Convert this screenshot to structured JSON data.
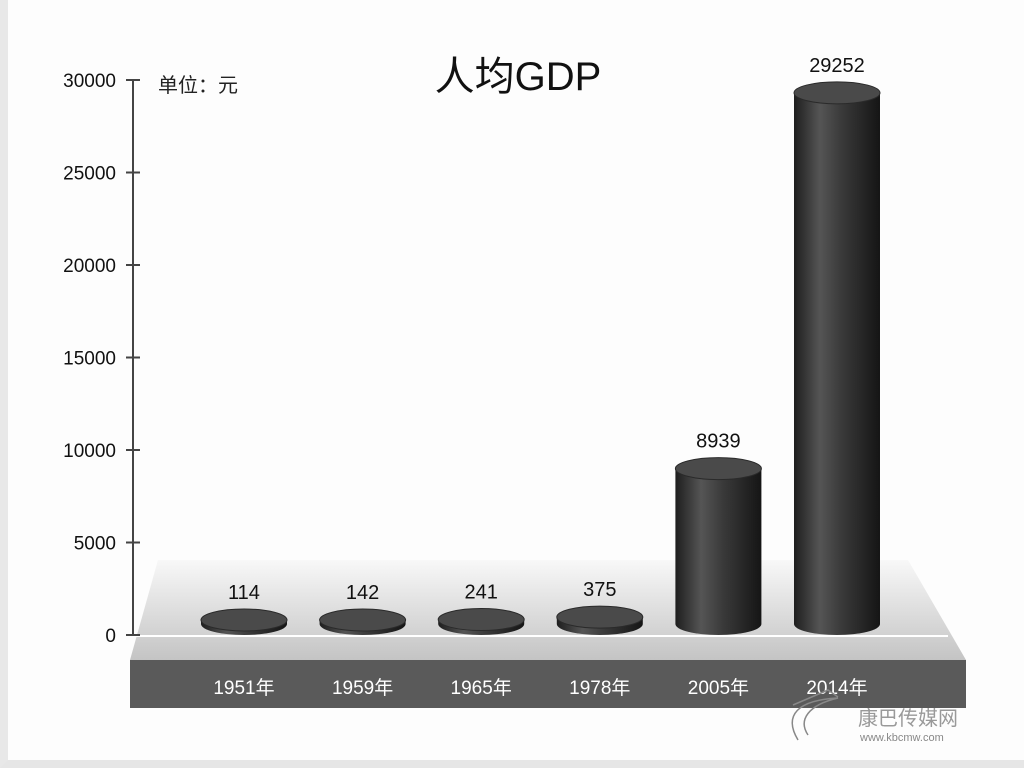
{
  "chart_data": {
    "type": "bar",
    "style": "3d-cylinder",
    "title": "人均GDP",
    "unit_label": "单位：元",
    "categories": [
      "1951年",
      "1959年",
      "1965年",
      "1978年",
      "2005年",
      "2014年"
    ],
    "values": [
      114,
      142,
      241,
      375,
      8939,
      29252
    ],
    "data_labels": [
      "114",
      "142",
      "241",
      "375",
      "8939",
      "29252"
    ],
    "ylim": [
      0,
      30000
    ],
    "yticks": [
      0,
      5000,
      10000,
      15000,
      20000,
      25000,
      30000
    ],
    "ytick_labels": [
      "0",
      "5000",
      "10000",
      "15000",
      "20000",
      "25000",
      "30000"
    ],
    "grid": false,
    "legend": "none",
    "colors": {
      "bar": "#3a3a3a",
      "floor": "#d0d0d0",
      "band": "#5a5a5a"
    }
  },
  "watermark": {
    "text": "康巴传媒网",
    "url_text": "www.kbcmw.com"
  }
}
